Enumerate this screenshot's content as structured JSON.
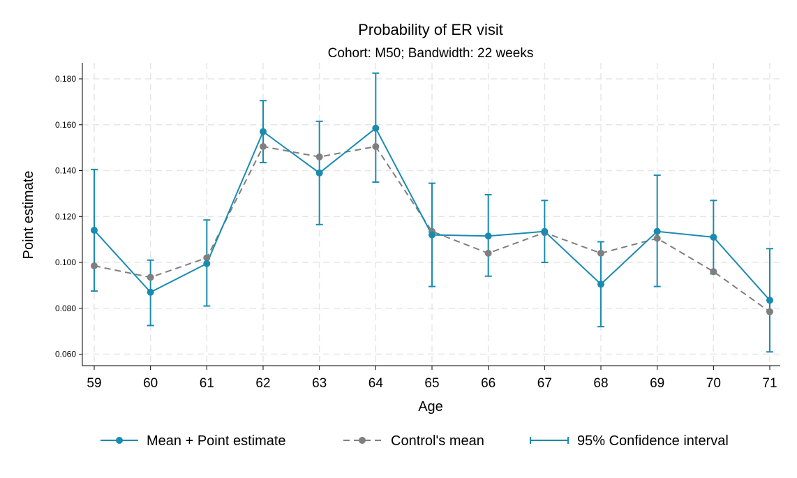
{
  "chart_data": {
    "type": "line",
    "title": "Probability of ER visit",
    "subtitle": "Cohort: M50; Bandwidth: 22 weeks",
    "xlabel": "Age",
    "ylabel": "Point estimate",
    "x": [
      59,
      60,
      61,
      62,
      63,
      64,
      65,
      66,
      67,
      68,
      69,
      70,
      71
    ],
    "x_tick_labels": [
      "59",
      "60",
      "61",
      "62",
      "63",
      "64",
      "65",
      "66",
      "67",
      "68",
      "69",
      "70",
      "71"
    ],
    "y_ticks": [
      0.06,
      0.08,
      0.1,
      0.12,
      0.14,
      0.16,
      0.18
    ],
    "y_tick_labels": [
      "0.060",
      "0.080",
      "0.100",
      "0.120",
      "0.140",
      "0.160",
      "0.180"
    ],
    "xlim": [
      59,
      71
    ],
    "ylim": [
      0.055,
      0.187
    ],
    "grid": true,
    "legend_position": "bottom",
    "series": [
      {
        "name": "Mean + Point estimate",
        "color": "#1a8bb0",
        "style": "solid",
        "marker": "circle",
        "values": [
          0.114,
          0.087,
          0.0995,
          0.157,
          0.139,
          0.1585,
          0.112,
          0.1115,
          0.1135,
          0.0905,
          0.1135,
          0.111,
          0.0835
        ]
      },
      {
        "name": "Control's mean",
        "color": "#7f7f7f",
        "style": "dashed",
        "marker": "circle",
        "values": [
          0.0985,
          0.0935,
          0.102,
          0.1505,
          0.146,
          0.1505,
          0.1135,
          0.104,
          0.113,
          0.104,
          0.1105,
          0.096,
          0.0785
        ]
      }
    ],
    "confidence_interval": {
      "name": "95% Confidence interval",
      "color": "#1a8bb0",
      "lower": [
        0.0875,
        0.0725,
        0.081,
        0.1435,
        0.1165,
        0.135,
        0.0895,
        0.094,
        0.1,
        0.072,
        0.0895,
        0.095,
        0.061
      ],
      "upper": [
        0.1405,
        0.101,
        0.1185,
        0.1705,
        0.1615,
        0.1825,
        0.1345,
        0.1295,
        0.127,
        0.109,
        0.138,
        0.127,
        0.106
      ]
    }
  }
}
